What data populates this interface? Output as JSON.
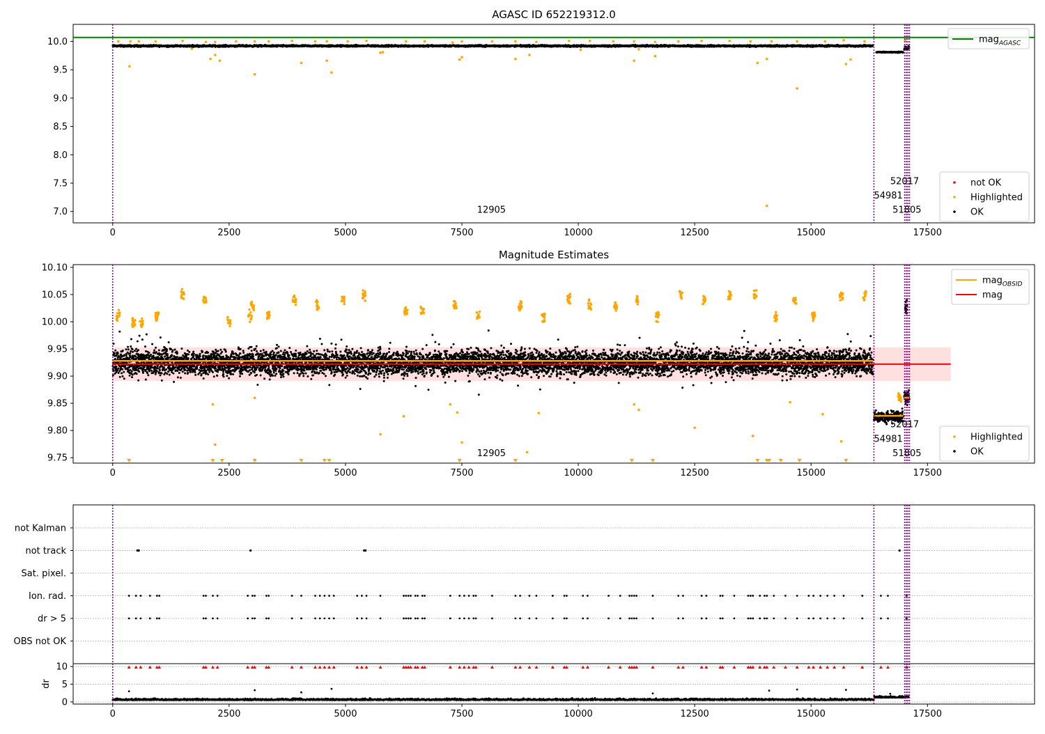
{
  "chart_data": [
    {
      "id": "agasc",
      "type": "scatter",
      "title": "AGASC ID 652219312.0",
      "xlim": [
        -850,
        19800
      ],
      "ylim": [
        6.8,
        10.3
      ],
      "xticks": [
        0,
        2500,
        5000,
        7500,
        10000,
        12500,
        15000,
        17500
      ],
      "yticks": [
        7.0,
        7.5,
        8.0,
        8.5,
        9.0,
        9.5,
        10.0
      ],
      "hline": {
        "name": "mag_AGASC",
        "value": 10.07,
        "color": "#008000"
      },
      "vlines": [
        0,
        16350,
        17010,
        17045,
        17080,
        17115
      ],
      "obs_labels": [
        {
          "text": "12905",
          "x": 7825,
          "y": 6.98
        },
        {
          "text": "52017",
          "x": 16700,
          "y": 7.48
        },
        {
          "text": "54981",
          "x": 16350,
          "y": 7.23
        },
        {
          "text": "51805",
          "x": 16750,
          "y": 6.98
        }
      ],
      "ok_segments": [
        {
          "x0": 0,
          "x1": 16330,
          "y": 9.92,
          "spread": 0.035
        },
        {
          "x0": 16400,
          "x1": 16980,
          "y": 9.81,
          "spread": 0.02
        },
        {
          "x0": 17000,
          "x1": 17110,
          "y": 9.89,
          "spread": 0.08
        }
      ],
      "highlighted": [
        [
          120,
          10.0
        ],
        [
          380,
          10.0
        ],
        [
          560,
          10.0
        ],
        [
          920,
          10.0
        ],
        [
          1500,
          10.01
        ],
        [
          1700,
          9.87
        ],
        [
          2000,
          9.99
        ],
        [
          2200,
          9.99
        ],
        [
          2650,
          10.0
        ],
        [
          3050,
          10.0
        ],
        [
          3350,
          10.0
        ],
        [
          3850,
          10.01
        ],
        [
          4350,
          10.0
        ],
        [
          4600,
          10.0
        ],
        [
          5050,
          10.0
        ],
        [
          5450,
          10.01
        ],
        [
          5800,
          9.81
        ],
        [
          6300,
          10.0
        ],
        [
          6700,
          10.0
        ],
        [
          7300,
          9.98
        ],
        [
          7500,
          10.0
        ],
        [
          8150,
          10.0
        ],
        [
          8650,
          10.0
        ],
        [
          9100,
          9.99
        ],
        [
          9800,
          10.01
        ],
        [
          10250,
          10.01
        ],
        [
          10750,
          10.0
        ],
        [
          11200,
          10.0
        ],
        [
          11650,
          9.99
        ],
        [
          12150,
          10.0
        ],
        [
          12650,
          10.01
        ],
        [
          13250,
          10.01
        ],
        [
          13700,
          10.0
        ],
        [
          14150,
          10.0
        ],
        [
          14700,
          10.0
        ],
        [
          15300,
          10.0
        ],
        [
          15700,
          10.02
        ],
        [
          16150,
          10.0
        ],
        [
          17020,
          10.02
        ],
        [
          360,
          9.56
        ],
        [
          2100,
          9.69
        ],
        [
          2200,
          9.76
        ],
        [
          2300,
          9.66
        ],
        [
          3050,
          9.42
        ],
        [
          4050,
          9.62
        ],
        [
          4600,
          9.66
        ],
        [
          4700,
          9.45
        ],
        [
          5750,
          9.8
        ],
        [
          7450,
          9.68
        ],
        [
          7500,
          9.72
        ],
        [
          8650,
          9.69
        ],
        [
          8950,
          9.76
        ],
        [
          11200,
          9.66
        ],
        [
          11650,
          9.74
        ],
        [
          13850,
          9.62
        ],
        [
          14050,
          9.69
        ],
        [
          14700,
          9.17
        ],
        [
          14050,
          7.1
        ],
        [
          15750,
          9.6
        ],
        [
          15850,
          9.68
        ],
        [
          10050,
          9.85
        ],
        [
          11300,
          9.86
        ]
      ],
      "legends": [
        {
          "entries": [
            {
              "label": "mag_AGASC",
              "marker": "line",
              "color": "#008000"
            }
          ]
        },
        {
          "entries": [
            {
              "label": "not OK",
              "marker": "dot",
              "color": "#ff0000"
            },
            {
              "label": "Highlighted",
              "marker": "dot",
              "color": "#ffa500"
            },
            {
              "label": "OK",
              "marker": "dot",
              "color": "#000000"
            }
          ]
        }
      ]
    },
    {
      "id": "estimates",
      "type": "scatter",
      "title": "Magnitude Estimates",
      "xlim": [
        -850,
        19800
      ],
      "ylim": [
        9.74,
        10.105
      ],
      "xticks": [
        0,
        2500,
        5000,
        7500,
        10000,
        12500,
        15000,
        17500
      ],
      "yticks": [
        9.75,
        9.8,
        9.85,
        9.9,
        9.95,
        10.0,
        10.05,
        10.1
      ],
      "mag_line": {
        "name": "mag",
        "value": 9.922,
        "color": "#ff0000",
        "band": [
          9.891,
          9.953
        ],
        "x1": 18000
      },
      "mag_obsid_segments": [
        {
          "x0": 0,
          "x1": 16330,
          "y": 9.928
        },
        {
          "x0": 16350,
          "x1": 16980,
          "y": 9.827
        },
        {
          "x0": 17000,
          "x1": 17110,
          "y": 9.86
        }
      ],
      "vlines": [
        0,
        16350,
        17010,
        17045,
        17080,
        17115
      ],
      "obs_labels": [
        {
          "text": "12905",
          "x": 7825,
          "y": 9.753
        },
        {
          "text": "52017",
          "x": 16700,
          "y": 9.806
        },
        {
          "text": "54981",
          "x": 16350,
          "y": 9.779
        },
        {
          "text": "51805",
          "x": 16750,
          "y": 9.753
        }
      ],
      "ok_segments": [
        {
          "x0": 0,
          "x1": 16330,
          "y": 9.925,
          "spread": 0.03
        },
        {
          "x0": 16350,
          "x1": 16980,
          "y": 9.825,
          "spread": 0.012
        },
        {
          "x0": 17000,
          "x1": 17110,
          "y": 9.86,
          "spread": 0.02
        },
        {
          "x0": 17020,
          "x1": 17060,
          "y": 10.03,
          "spread": 0.025
        }
      ],
      "highlighted_clusters": [
        [
          120,
          10.01
        ],
        [
          450,
          10.0
        ],
        [
          620,
          10.0
        ],
        [
          950,
          10.01
        ],
        [
          1500,
          10.05
        ],
        [
          1980,
          10.04
        ],
        [
          2500,
          10.0
        ],
        [
          2950,
          10.01
        ],
        [
          3000,
          10.03
        ],
        [
          3350,
          10.01
        ],
        [
          3900,
          10.04
        ],
        [
          4400,
          10.03
        ],
        [
          4950,
          10.04
        ],
        [
          5400,
          10.05
        ],
        [
          6300,
          10.02
        ],
        [
          6650,
          10.02
        ],
        [
          7350,
          10.03
        ],
        [
          7850,
          10.01
        ],
        [
          8750,
          10.03
        ],
        [
          9250,
          10.01
        ],
        [
          9800,
          10.04
        ],
        [
          10250,
          10.03
        ],
        [
          10800,
          10.03
        ],
        [
          11250,
          10.04
        ],
        [
          11700,
          10.01
        ],
        [
          12200,
          10.05
        ],
        [
          12700,
          10.04
        ],
        [
          13250,
          10.05
        ],
        [
          13800,
          10.05
        ],
        [
          14250,
          10.01
        ],
        [
          14650,
          10.04
        ],
        [
          15050,
          10.01
        ],
        [
          15650,
          10.05
        ],
        [
          16150,
          10.05
        ],
        [
          16900,
          9.86
        ]
      ],
      "highlighted_low": [
        [
          2150,
          9.848
        ],
        [
          2200,
          9.774
        ],
        [
          3050,
          9.86
        ],
        [
          5750,
          9.793
        ],
        [
          6250,
          9.826
        ],
        [
          7250,
          9.848
        ],
        [
          7400,
          9.833
        ],
        [
          7500,
          9.778
        ],
        [
          8900,
          9.76
        ],
        [
          9150,
          9.832
        ],
        [
          11200,
          9.848
        ],
        [
          11300,
          9.838
        ],
        [
          12500,
          9.805
        ],
        [
          13750,
          9.79
        ],
        [
          14550,
          9.852
        ],
        [
          15250,
          9.83
        ],
        [
          15650,
          9.78
        ]
      ],
      "down_markers": [
        350,
        2150,
        2350,
        3050,
        4050,
        4550,
        4650,
        7450,
        8650,
        11150,
        11600,
        13850,
        14050,
        14100,
        14350,
        14750,
        15750
      ],
      "legends": [
        {
          "entries": [
            {
              "label": "mag_OBSID",
              "marker": "line",
              "color": "#ffa500"
            },
            {
              "label": "mag",
              "marker": "line",
              "color": "#ff0000"
            }
          ]
        },
        {
          "entries": [
            {
              "label": "Highlighted",
              "marker": "dot",
              "color": "#ffa500"
            },
            {
              "label": "OK",
              "marker": "dot",
              "color": "#000000"
            }
          ]
        }
      ]
    },
    {
      "id": "flags",
      "type": "scatter",
      "xlim": [
        -850,
        19800
      ],
      "xticks": [
        0,
        2500,
        5000,
        7500,
        10000,
        12500,
        15000,
        17500
      ],
      "categories": [
        "not Kalman",
        "not track",
        "Sat. pixel.",
        "Ion. rad.",
        "dr > 5",
        "OBS not OK"
      ],
      "vlines": [
        0,
        16350,
        17010,
        17045,
        17080,
        17115
      ],
      "not_track": [
        530,
        560,
        2960,
        5400,
        5430,
        16900
      ],
      "ion_rad": [
        350,
        500,
        600,
        800,
        950,
        1000,
        1950,
        2000,
        2150,
        2250,
        2900,
        3000,
        3050,
        3300,
        3350,
        3850,
        4050,
        4350,
        4450,
        4550,
        4650,
        4750,
        5250,
        5350,
        5450,
        5750,
        6250,
        6300,
        6350,
        6400,
        6500,
        6550,
        6650,
        6700,
        7250,
        7450,
        7550,
        7650,
        7750,
        7800,
        8150,
        8650,
        8750,
        8950,
        9100,
        9450,
        9700,
        9750,
        10100,
        10200,
        10650,
        10900,
        11100,
        11150,
        11200,
        11250,
        11600,
        12150,
        12250,
        12650,
        12750,
        13050,
        13100,
        13350,
        13650,
        13700,
        13750,
        13900,
        14000,
        14050,
        14200,
        14450,
        14700,
        14950,
        15050,
        15200,
        15350,
        15500,
        15700,
        16100,
        16500,
        16650,
        17050
      ],
      "dr_panel": {
        "ylabel": "dr",
        "yticks": [
          0,
          5,
          10
        ],
        "ylim": [
          -0.6,
          10.8
        ],
        "red_markers_y": 9.8,
        "outliers": [
          [
            350,
            3.0
          ],
          [
            3050,
            3.3
          ],
          [
            4050,
            2.7
          ],
          [
            4700,
            3.7
          ],
          [
            11600,
            2.4
          ],
          [
            14100,
            3.2
          ],
          [
            14700,
            3.5
          ],
          [
            15750,
            3.4
          ],
          [
            16700,
            2.3
          ]
        ]
      }
    }
  ]
}
